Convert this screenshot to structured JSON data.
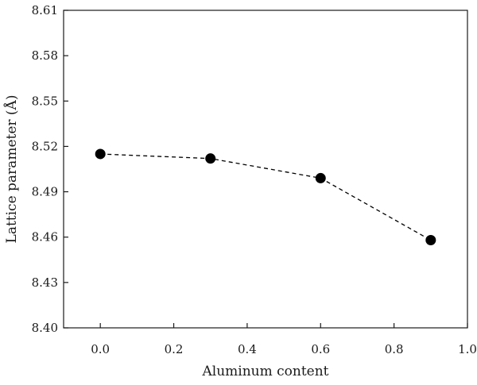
{
  "chart_data": {
    "type": "scatter",
    "xlabel": "Aluminum content",
    "ylabel": "Lattice parameter (Å)",
    "xlim": [
      -0.1,
      1.0
    ],
    "ylim": [
      8.4,
      8.61
    ],
    "xticks": [
      "0.0",
      "0.2",
      "0.4",
      "0.6",
      "0.8",
      "1.0"
    ],
    "yticks": [
      "8.40",
      "8.43",
      "8.46",
      "8.49",
      "8.52",
      "8.55",
      "8.58",
      "8.61"
    ],
    "grid": false,
    "legend": "none",
    "series": [
      {
        "marker": "filled-circle",
        "line_style": "dashed",
        "color": "#000000",
        "x": [
          0.0,
          0.3,
          0.6,
          0.9
        ],
        "y": [
          8.515,
          8.512,
          8.499,
          8.458
        ]
      }
    ]
  }
}
